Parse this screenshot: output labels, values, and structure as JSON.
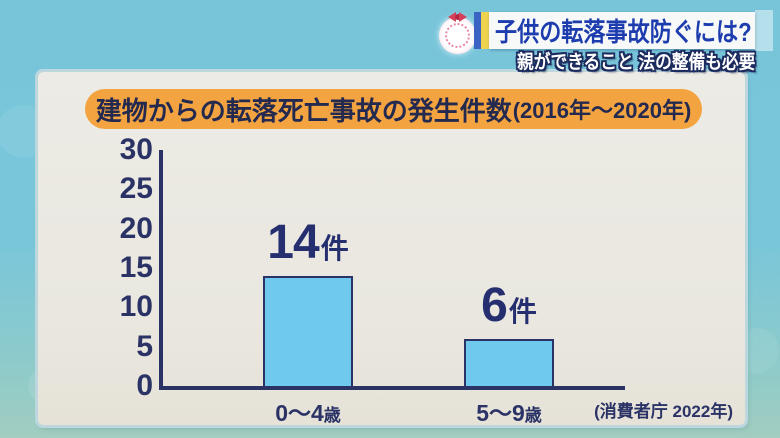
{
  "header": {
    "title": "子供の転落事故防ぐには?",
    "subtitle": "親ができること 法の整備も必要"
  },
  "chart": {
    "title_main": "建物からの転落死亡事故の発生件数",
    "title_period": "(2016年〜2020年)",
    "source": "(消費者庁 2022年)",
    "unit_suffix": "件"
  },
  "chart_data": {
    "type": "bar",
    "title": "建物からの転落死亡事故の発生件数(2016年〜2020年)",
    "categories": [
      "0〜4歳",
      "5〜9歳"
    ],
    "values": [
      14,
      6
    ],
    "unit": "件",
    "ylim": [
      0,
      30
    ],
    "yticks": [
      0,
      5,
      10,
      15,
      20,
      25,
      30
    ],
    "grid": false,
    "legend": false,
    "xlabel": "",
    "ylabel": "",
    "source": "(消費者庁 2022年)",
    "bar_color": "#6fc9ee"
  },
  "colors": {
    "background_top": "#78c5da",
    "background_bottom": "#a2cdc0",
    "panel": "#e9e7df",
    "title_pill_orange": "#f3a440",
    "navy_text": "#2b3366",
    "headline_blue": "#1d3cae",
    "bar_fill": "#6fc9ee",
    "accent_yellow": "#eed34f",
    "accent_blue": "#3a63c4"
  }
}
